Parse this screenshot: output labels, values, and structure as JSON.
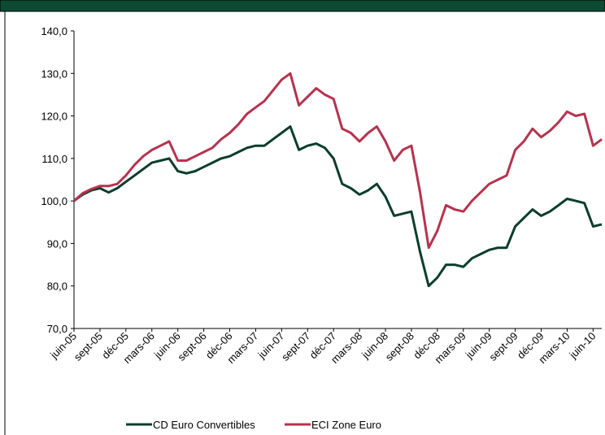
{
  "chart_data": {
    "type": "line",
    "categories": [
      "juin-05",
      null,
      null,
      "sept-05",
      null,
      null,
      "déc-05",
      null,
      null,
      "mars-06",
      null,
      null,
      "juin-06",
      null,
      null,
      "sept-06",
      null,
      null,
      "déc-06",
      null,
      null,
      "mars-07",
      null,
      null,
      "juin-07",
      null,
      null,
      "sept-07",
      null,
      null,
      "déc-07",
      null,
      null,
      "mars-08",
      null,
      null,
      "juin-08",
      null,
      null,
      "sept-08",
      null,
      null,
      "déc-08",
      null,
      null,
      "mars-09",
      null,
      null,
      "juin-09",
      null,
      null,
      "sept-09",
      null,
      null,
      "déc-09",
      null,
      null,
      "mars-10",
      null,
      null,
      "juin-10",
      null
    ],
    "series": [
      {
        "name": "CD Euro Convertibles",
        "color": "#0b3d2b",
        "values": [
          100,
          101.5,
          102.5,
          103,
          102,
          103,
          104.5,
          106,
          107.5,
          109,
          109.5,
          110,
          107,
          106.5,
          107,
          108,
          109,
          110,
          110.5,
          111.5,
          112.5,
          113,
          113,
          114.5,
          116,
          117.5,
          112,
          113,
          113.5,
          112.5,
          110,
          104,
          103,
          101.5,
          102.5,
          104,
          101,
          96.5,
          97,
          97.5,
          88,
          80,
          82,
          85,
          85,
          84.5,
          86.5,
          87.5,
          88.5,
          89,
          89,
          94,
          96,
          98,
          96.5,
          97.5,
          99,
          100.5,
          100,
          99.5,
          94,
          94.5
        ]
      },
      {
        "name": "ECI Zone Euro",
        "color": "#b5334e",
        "values": [
          100,
          101.8,
          102.8,
          103.5,
          103.5,
          104,
          106,
          108.5,
          110.5,
          112,
          113,
          114,
          109.5,
          109.5,
          110.5,
          111.5,
          112.5,
          114.5,
          116,
          118,
          120.5,
          122,
          123.5,
          126,
          128.5,
          130,
          122.5,
          124.5,
          126.5,
          125,
          124,
          117,
          116,
          114,
          116,
          117.5,
          114,
          109.5,
          112,
          113,
          102,
          89,
          93,
          99,
          98,
          97.5,
          100,
          102,
          104,
          105,
          106,
          112,
          114,
          117,
          115,
          116.5,
          118.5,
          121,
          120,
          120.5,
          113,
          114.5
        ]
      }
    ],
    "ylim": [
      70,
      140
    ],
    "yticks": [
      {
        "value": 70,
        "label": "70,0"
      },
      {
        "value": 80,
        "label": "80,0"
      },
      {
        "value": 90,
        "label": "90,0"
      },
      {
        "value": 100,
        "label": "100,0"
      },
      {
        "value": 110,
        "label": "110,0"
      },
      {
        "value": 120,
        "label": "120,0"
      },
      {
        "value": 130,
        "label": "130,0"
      },
      {
        "value": 140,
        "label": "140,0"
      }
    ],
    "legend": "bottom"
  }
}
